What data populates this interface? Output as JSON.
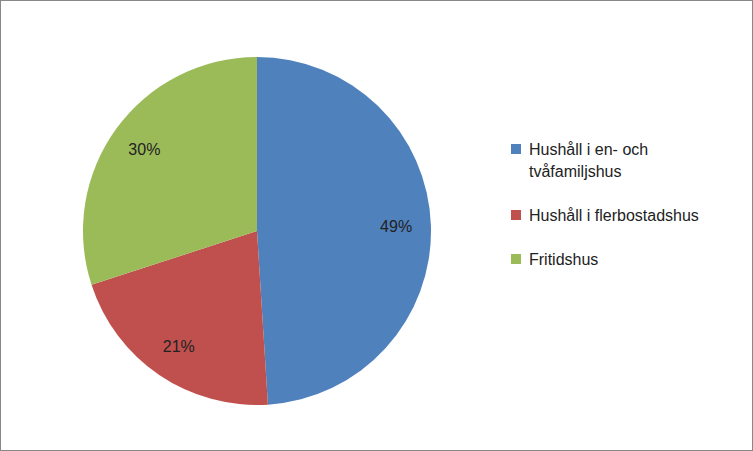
{
  "chart_data": {
    "type": "pie",
    "categories": [
      "Hushåll i en- och tvåfamiljshus",
      "Hushåll i flerbostadshus",
      "Fritidshus"
    ],
    "values": [
      49,
      21,
      30
    ],
    "value_labels": [
      "49%",
      "21%",
      "30%"
    ],
    "colors": [
      "#4f81bd",
      "#c0504d",
      "#9bbb59"
    ],
    "legend": "right",
    "data_labels": true
  }
}
